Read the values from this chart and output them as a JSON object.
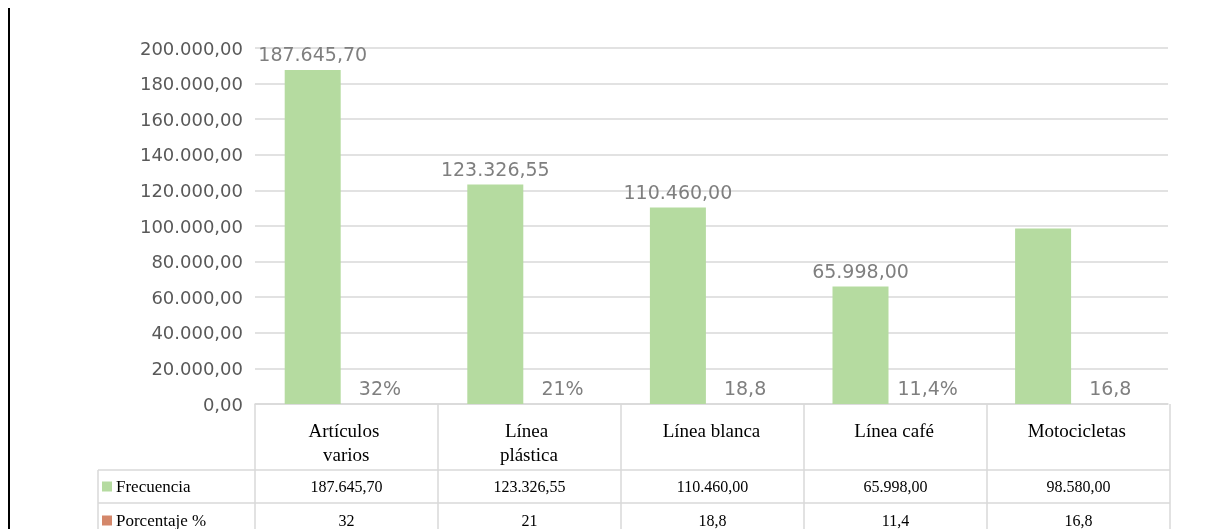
{
  "chart_data": {
    "type": "bar",
    "categories": [
      "Artículos varios",
      "Línea plástica",
      "Línea blanca",
      "Línea café",
      "Motocicletas"
    ],
    "series": [
      {
        "name": "Frecuencia",
        "color": "#b5dba0",
        "values": [
          187645.7,
          123326.55,
          110460.0,
          65998.0,
          98580.0
        ],
        "value_labels": [
          "187.645,70",
          "123.326,55",
          "110.460,00",
          "65.998,00",
          null
        ]
      },
      {
        "name": "Porcentaje %",
        "color": "#d4876a",
        "values": [
          32,
          21,
          18.8,
          11.4,
          16.8
        ],
        "value_labels": [
          "32%",
          "21%",
          "18,8",
          "11,4%",
          "16,8"
        ]
      }
    ],
    "ylim": [
      0,
      200000
    ],
    "yticks": [
      {
        "value": 0,
        "label": "0,00"
      },
      {
        "value": 20000,
        "label": "20.000,00"
      },
      {
        "value": 40000,
        "label": "40.000,00"
      },
      {
        "value": 60000,
        "label": "60.000,00"
      },
      {
        "value": 80000,
        "label": "80.000,00"
      },
      {
        "value": 100000,
        "label": "100.000,00"
      },
      {
        "value": 120000,
        "label": "120.000,00"
      },
      {
        "value": 140000,
        "label": "140.000,00"
      },
      {
        "value": 160000,
        "label": "160.000,00"
      },
      {
        "value": 180000,
        "label": "180.000,00"
      },
      {
        "value": 200000,
        "label": "200.000,00"
      }
    ],
    "grid": "y",
    "annotations": [
      "187.645,70",
      "123.326,55",
      "110.460,00",
      "65.998,00",
      "98.580,00",
      "32",
      "21",
      "18,8",
      "11,4",
      "16,8"
    ],
    "legend": "bottom"
  }
}
